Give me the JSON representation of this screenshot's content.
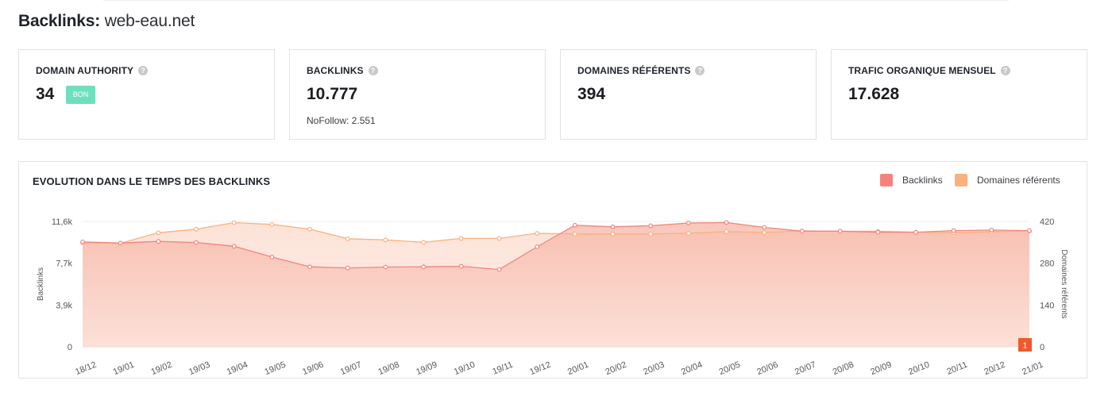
{
  "header": {
    "title_bold": "Backlinks:",
    "domain": "web-eau.net"
  },
  "cards": [
    {
      "label": "DOMAIN AUTHORITY",
      "value": "34",
      "badge": "BON"
    },
    {
      "label": "BACKLINKS",
      "value": "10.777",
      "sub": "NoFollow: 2.551"
    },
    {
      "label": "DOMAINES RÉFÉRENTS",
      "value": "394"
    },
    {
      "label": "TRAFIC ORGANIQUE MENSUEL",
      "value": "17.628"
    }
  ],
  "help_glyph": "?",
  "chart_data": {
    "type": "area",
    "title": "EVOLUTION DANS LE TEMPS DES BACKLINKS",
    "legend_position": "top-right",
    "ylabel": "Backlinks",
    "y2label": "Domaines référents",
    "ylim": [
      0,
      11600
    ],
    "y2lim": [
      0,
      420
    ],
    "y_ticks": [
      "0",
      "3,9k",
      "7,7k",
      "11,6k"
    ],
    "y2_ticks": [
      "0",
      "140",
      "280",
      "420"
    ],
    "categories": [
      "18/12",
      "19/01",
      "19/02",
      "19/03",
      "19/04",
      "19/05",
      "19/06",
      "19/07",
      "19/08",
      "19/09",
      "19/10",
      "19/11",
      "19/12",
      "20/01",
      "20/02",
      "20/03",
      "20/04",
      "20/05",
      "20/06",
      "20/07",
      "20/08",
      "20/09",
      "20/10",
      "20/11",
      "20/12",
      "21/01"
    ],
    "series": [
      {
        "name": "Backlinks",
        "axis": "left",
        "color": "#f4837d",
        "values": [
          9700,
          9600,
          9750,
          9650,
          9300,
          8300,
          7400,
          7300,
          7380,
          7400,
          7450,
          7150,
          9250,
          11250,
          11100,
          11200,
          11450,
          11500,
          11050,
          10700,
          10700,
          10600,
          10600,
          10750,
          10800,
          10750
        ]
      },
      {
        "name": "Domaines référents",
        "axis": "right",
        "color": "#fbb17e",
        "values": [
          348,
          347,
          382,
          394,
          416,
          410,
          394,
          362,
          358,
          350,
          363,
          363,
          380,
          378,
          378,
          378,
          380,
          386,
          383,
          388,
          387,
          387,
          384,
          382,
          385,
          388
        ]
      }
    ],
    "annotation": "1",
    "grid": true
  },
  "colors": {
    "badge": "#6fe0be",
    "backlinks": "#f4837d",
    "domaines": "#fbb17e",
    "annotation": "#ef5a2b"
  }
}
